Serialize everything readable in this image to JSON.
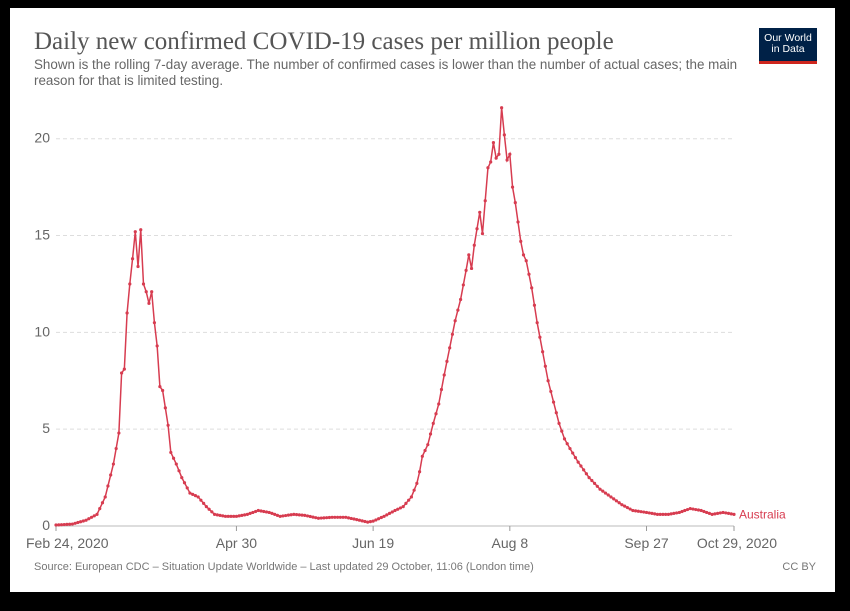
{
  "header": {
    "title": "Daily new confirmed COVID-19 cases per million people",
    "subtitle": "Shown is the rolling 7-day average. The number of confirmed cases is lower than the number of actual cases; the main reason for that is limited testing.",
    "logo_line1": "Our World",
    "logo_line2": "in Data"
  },
  "footer": {
    "source": "Source: European CDC – Situation Update Worldwide – Last updated 29 October, 11:06 (London time)",
    "license": "CC BY"
  },
  "colors": {
    "series": "#d73c50",
    "grid": "#dddddd",
    "tick_text": "#666666"
  },
  "chart_data": {
    "type": "line",
    "x_axis": {
      "type": "date",
      "start": "2020-02-24",
      "end": "2020-10-29"
    },
    "xticks": [
      {
        "date": "2020-02-24",
        "label": "Feb 24, 2020"
      },
      {
        "date": "2020-04-30",
        "label": "Apr 30"
      },
      {
        "date": "2020-06-19",
        "label": "Jun 19"
      },
      {
        "date": "2020-08-08",
        "label": "Aug 8"
      },
      {
        "date": "2020-09-27",
        "label": "Sep 27"
      },
      {
        "date": "2020-10-29",
        "label": "Oct 29, 2020"
      }
    ],
    "ylim": [
      0,
      22
    ],
    "yticks": [
      0,
      5,
      10,
      15,
      20
    ],
    "grid": true,
    "series": [
      {
        "name": "Australia",
        "points": [
          [
            "2020-02-24",
            0.05
          ],
          [
            "2020-03-01",
            0.1
          ],
          [
            "2020-03-06",
            0.3
          ],
          [
            "2020-03-10",
            0.6
          ],
          [
            "2020-03-13",
            1.5
          ],
          [
            "2020-03-16",
            3.2
          ],
          [
            "2020-03-18",
            4.8
          ],
          [
            "2020-03-19",
            7.9
          ],
          [
            "2020-03-20",
            8.1
          ],
          [
            "2020-03-21",
            11.0
          ],
          [
            "2020-03-22",
            12.5
          ],
          [
            "2020-03-23",
            13.8
          ],
          [
            "2020-03-24",
            15.2
          ],
          [
            "2020-03-25",
            13.4
          ],
          [
            "2020-03-26",
            15.3
          ],
          [
            "2020-03-27",
            12.5
          ],
          [
            "2020-03-28",
            12.1
          ],
          [
            "2020-03-29",
            11.5
          ],
          [
            "2020-03-30",
            12.1
          ],
          [
            "2020-03-31",
            10.5
          ],
          [
            "2020-04-01",
            9.3
          ],
          [
            "2020-04-02",
            7.2
          ],
          [
            "2020-04-03",
            7.0
          ],
          [
            "2020-04-05",
            5.2
          ],
          [
            "2020-04-06",
            3.8
          ],
          [
            "2020-04-08",
            3.2
          ],
          [
            "2020-04-10",
            2.5
          ],
          [
            "2020-04-13",
            1.7
          ],
          [
            "2020-04-16",
            1.5
          ],
          [
            "2020-04-19",
            1.0
          ],
          [
            "2020-04-22",
            0.6
          ],
          [
            "2020-04-26",
            0.5
          ],
          [
            "2020-04-30",
            0.5
          ],
          [
            "2020-05-04",
            0.6
          ],
          [
            "2020-05-08",
            0.8
          ],
          [
            "2020-05-12",
            0.7
          ],
          [
            "2020-05-16",
            0.5
          ],
          [
            "2020-05-21",
            0.6
          ],
          [
            "2020-05-25",
            0.55
          ],
          [
            "2020-05-30",
            0.4
          ],
          [
            "2020-06-04",
            0.45
          ],
          [
            "2020-06-09",
            0.45
          ],
          [
            "2020-06-14",
            0.3
          ],
          [
            "2020-06-17",
            0.2
          ],
          [
            "2020-06-19",
            0.25
          ],
          [
            "2020-06-23",
            0.5
          ],
          [
            "2020-06-27",
            0.8
          ],
          [
            "2020-06-30",
            1.0
          ],
          [
            "2020-07-03",
            1.5
          ],
          [
            "2020-07-05",
            2.2
          ],
          [
            "2020-07-06",
            2.8
          ],
          [
            "2020-07-07",
            3.6
          ],
          [
            "2020-07-09",
            4.2
          ],
          [
            "2020-07-11",
            5.3
          ],
          [
            "2020-07-13",
            6.3
          ],
          [
            "2020-07-15",
            7.8
          ],
          [
            "2020-07-17",
            9.2
          ],
          [
            "2020-07-19",
            10.6
          ],
          [
            "2020-07-21",
            11.7
          ],
          [
            "2020-07-23",
            13.2
          ],
          [
            "2020-07-24",
            14.0
          ],
          [
            "2020-07-25",
            13.3
          ],
          [
            "2020-07-26",
            14.5
          ],
          [
            "2020-07-28",
            16.2
          ],
          [
            "2020-07-29",
            15.1
          ],
          [
            "2020-07-30",
            16.8
          ],
          [
            "2020-07-31",
            18.5
          ],
          [
            "2020-08-01",
            18.8
          ],
          [
            "2020-08-02",
            19.8
          ],
          [
            "2020-08-03",
            19.0
          ],
          [
            "2020-08-04",
            19.2
          ],
          [
            "2020-08-05",
            21.6
          ],
          [
            "2020-08-06",
            20.2
          ],
          [
            "2020-08-07",
            18.9
          ],
          [
            "2020-08-08",
            19.2
          ],
          [
            "2020-08-09",
            17.5
          ],
          [
            "2020-08-10",
            16.7
          ],
          [
            "2020-08-12",
            14.7
          ],
          [
            "2020-08-13",
            14.0
          ],
          [
            "2020-08-14",
            13.7
          ],
          [
            "2020-08-16",
            12.3
          ],
          [
            "2020-08-18",
            10.5
          ],
          [
            "2020-08-20",
            9.0
          ],
          [
            "2020-08-22",
            7.5
          ],
          [
            "2020-08-24",
            6.4
          ],
          [
            "2020-08-26",
            5.3
          ],
          [
            "2020-08-28",
            4.5
          ],
          [
            "2020-08-30",
            4.0
          ],
          [
            "2020-09-02",
            3.3
          ],
          [
            "2020-09-06",
            2.5
          ],
          [
            "2020-09-10",
            1.9
          ],
          [
            "2020-09-14",
            1.5
          ],
          [
            "2020-09-18",
            1.1
          ],
          [
            "2020-09-22",
            0.8
          ],
          [
            "2020-09-27",
            0.7
          ],
          [
            "2020-10-01",
            0.6
          ],
          [
            "2020-10-05",
            0.6
          ],
          [
            "2020-10-09",
            0.7
          ],
          [
            "2020-10-13",
            0.9
          ],
          [
            "2020-10-17",
            0.8
          ],
          [
            "2020-10-21",
            0.6
          ],
          [
            "2020-10-25",
            0.7
          ],
          [
            "2020-10-29",
            0.6
          ]
        ]
      }
    ]
  }
}
